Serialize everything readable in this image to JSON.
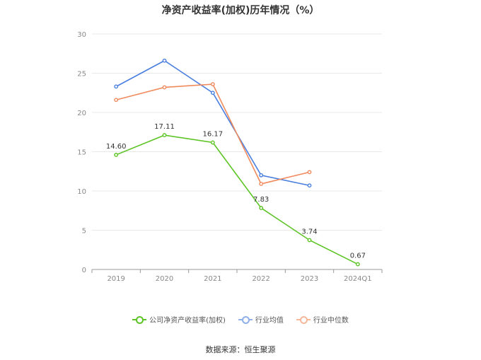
{
  "title": "净资产收益率(加权)历年情况（%）",
  "source": "数据来源：恒生聚源",
  "legend": [
    {
      "label": "公司净资产收益率(加权)",
      "color": "#5dc425"
    },
    {
      "label": "行业均值",
      "color": "#8fb0e8"
    },
    {
      "label": "行业中位数",
      "color": "#f5b89a"
    }
  ],
  "chart_data": {
    "type": "line",
    "title": "净资产收益率(加权)历年情况（%）",
    "categories": [
      "2019",
      "2020",
      "2021",
      "2022",
      "2023",
      "2024Q1"
    ],
    "ylim": [
      0,
      30
    ],
    "yticks": [
      0,
      5,
      10,
      15,
      20,
      25,
      30
    ],
    "grid": true,
    "legend_position": "bottom",
    "series": [
      {
        "name": "公司净资产收益率(加权)",
        "color": "#5dc425",
        "values": [
          14.6,
          17.11,
          16.17,
          7.83,
          3.74,
          0.67
        ],
        "labels": [
          "14.60",
          "17.11",
          "16.17",
          "7.83",
          "3.74",
          "0.67"
        ]
      },
      {
        "name": "行业均值",
        "color": "#4a7fe0",
        "values": [
          23.3,
          26.6,
          22.5,
          12.0,
          10.7,
          null
        ]
      },
      {
        "name": "行业中位数",
        "color": "#f08a5d",
        "values": [
          21.6,
          23.2,
          23.6,
          10.9,
          12.4,
          null
        ]
      }
    ]
  }
}
